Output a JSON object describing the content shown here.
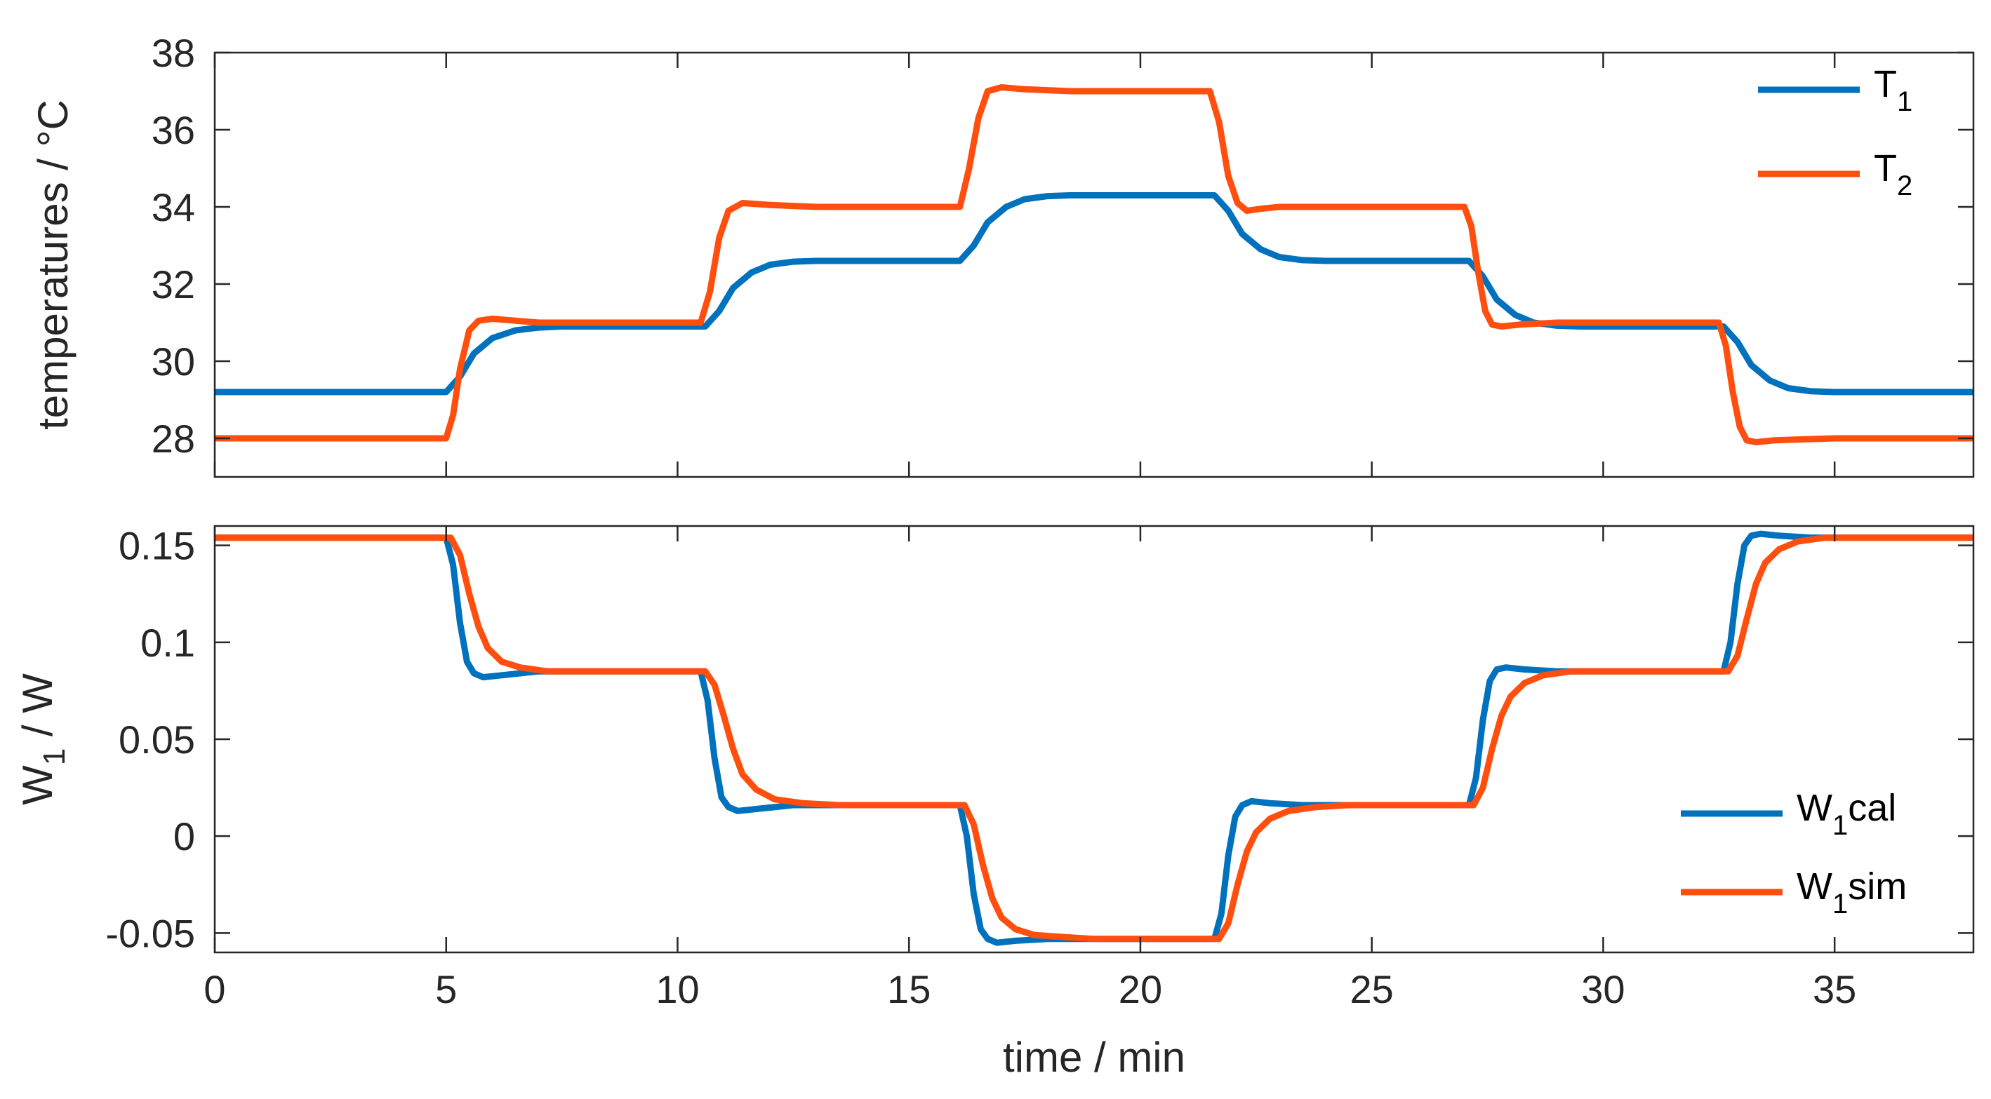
{
  "colors": {
    "T1": "#0072BD",
    "T2": "#FF4E0E",
    "axis": "#262626",
    "background": "#FFFFFF"
  },
  "chart_data": [
    {
      "type": "line",
      "title": "",
      "xlabel": "",
      "ylabel": "temperatures / °C",
      "xlim": [
        0,
        38
      ],
      "ylim": [
        27,
        38
      ],
      "xticks": [
        0,
        5,
        10,
        15,
        20,
        25,
        30,
        35
      ],
      "xtick_labels_shown": false,
      "yticks": [
        28,
        30,
        32,
        34,
        36,
        38
      ],
      "ytick_labels": [
        "28",
        "30",
        "32",
        "34",
        "36",
        "38"
      ],
      "grid": false,
      "legend_position": "top-right",
      "series": [
        {
          "name": "T1",
          "name_main": "T",
          "name_sub": "1",
          "name_rest": "",
          "color": "#0072BD",
          "x": [
            0,
            5.0,
            5.3,
            5.6,
            6.0,
            6.5,
            7.0,
            7.5,
            8.0,
            10.6,
            10.9,
            11.2,
            11.6,
            12.0,
            12.5,
            13.0,
            16.1,
            16.4,
            16.7,
            17.1,
            17.5,
            18.0,
            18.5,
            21.6,
            21.9,
            22.2,
            22.6,
            23.0,
            23.5,
            24.0,
            27.1,
            27.4,
            27.7,
            28.1,
            28.5,
            29.0,
            29.5,
            32.6,
            32.9,
            33.2,
            33.6,
            34.0,
            34.5,
            35.0,
            38
          ],
          "y": [
            29.2,
            29.2,
            29.6,
            30.2,
            30.6,
            30.8,
            30.87,
            30.9,
            30.9,
            30.9,
            31.3,
            31.9,
            32.3,
            32.5,
            32.58,
            32.6,
            32.6,
            33.0,
            33.6,
            34.0,
            34.2,
            34.28,
            34.3,
            34.3,
            33.9,
            33.3,
            32.9,
            32.7,
            32.62,
            32.6,
            32.6,
            32.2,
            31.6,
            31.2,
            31.0,
            30.92,
            30.9,
            30.9,
            30.5,
            29.9,
            29.5,
            29.3,
            29.22,
            29.2,
            29.2
          ]
        },
        {
          "name": "T2",
          "name_main": "T",
          "name_sub": "2",
          "name_rest": "",
          "color": "#FF4E0E",
          "x": [
            0,
            5.0,
            5.15,
            5.3,
            5.5,
            5.7,
            6.0,
            6.5,
            7.0,
            10.5,
            10.7,
            10.9,
            11.1,
            11.4,
            12.0,
            13.0,
            16.1,
            16.3,
            16.5,
            16.7,
            17.0,
            17.5,
            18.5,
            21.5,
            21.7,
            21.9,
            22.1,
            22.3,
            22.6,
            23.0,
            27.0,
            27.15,
            27.3,
            27.45,
            27.6,
            27.8,
            28.2,
            29.0,
            32.5,
            32.65,
            32.8,
            32.95,
            33.1,
            33.3,
            33.7,
            35.0,
            38
          ],
          "y": [
            28,
            28,
            28.6,
            29.8,
            30.8,
            31.05,
            31.1,
            31.05,
            31.0,
            31.0,
            31.8,
            33.2,
            33.9,
            34.1,
            34.05,
            34.0,
            34.0,
            35.0,
            36.3,
            37.0,
            37.1,
            37.05,
            37.0,
            37.0,
            36.2,
            34.8,
            34.1,
            33.9,
            33.95,
            34.0,
            34.0,
            33.5,
            32.3,
            31.3,
            30.95,
            30.9,
            30.95,
            31.0,
            31.0,
            30.4,
            29.2,
            28.3,
            27.95,
            27.9,
            27.95,
            28.0,
            28.0
          ]
        }
      ]
    },
    {
      "type": "line",
      "title": "",
      "xlabel": "time / min",
      "ylabel": "W1 / W",
      "ylabel_main": "W",
      "ylabel_sub": "1",
      "ylabel_rest": " / W",
      "xlim": [
        0,
        38
      ],
      "ylim": [
        -0.06,
        0.16
      ],
      "xticks": [
        0,
        5,
        10,
        15,
        20,
        25,
        30,
        35
      ],
      "xtick_labels": [
        "0",
        "5",
        "10",
        "15",
        "20",
        "25",
        "30",
        "35"
      ],
      "yticks": [
        -0.05,
        0,
        0.05,
        0.1,
        0.15
      ],
      "ytick_labels": [
        "-0.05",
        "0",
        "0.05",
        "0.1",
        "0.15"
      ],
      "grid": false,
      "legend_position": "bottom-right",
      "series": [
        {
          "name": "W1cal",
          "name_main": "W",
          "name_sub": "1",
          "name_rest": "cal",
          "color": "#0072BD",
          "x": [
            0,
            5.0,
            5.15,
            5.3,
            5.45,
            5.6,
            5.8,
            6.2,
            7.0,
            10.5,
            10.65,
            10.8,
            10.95,
            11.1,
            11.3,
            11.7,
            12.5,
            16.1,
            16.25,
            16.4,
            16.55,
            16.7,
            16.9,
            17.3,
            18.0,
            21.6,
            21.75,
            21.9,
            22.05,
            22.2,
            22.4,
            22.8,
            23.5,
            27.1,
            27.25,
            27.4,
            27.55,
            27.7,
            27.9,
            28.3,
            29.0,
            32.6,
            32.75,
            32.9,
            33.05,
            33.2,
            33.4,
            33.8,
            34.5,
            38
          ],
          "y": [
            0.154,
            0.154,
            0.14,
            0.11,
            0.09,
            0.084,
            0.082,
            0.083,
            0.085,
            0.085,
            0.07,
            0.04,
            0.02,
            0.015,
            0.013,
            0.014,
            0.016,
            0.016,
            0.0,
            -0.03,
            -0.048,
            -0.053,
            -0.055,
            -0.054,
            -0.053,
            -0.053,
            -0.04,
            -0.01,
            0.01,
            0.016,
            0.018,
            0.017,
            0.016,
            0.016,
            0.03,
            0.06,
            0.08,
            0.086,
            0.087,
            0.086,
            0.085,
            0.085,
            0.1,
            0.13,
            0.15,
            0.155,
            0.156,
            0.155,
            0.154,
            0.154
          ]
        },
        {
          "name": "W1sim",
          "name_main": "W",
          "name_sub": "1",
          "name_rest": "sim",
          "color": "#FF4E0E",
          "x": [
            0,
            5.1,
            5.3,
            5.5,
            5.7,
            5.9,
            6.2,
            6.6,
            7.2,
            8.0,
            10.6,
            10.8,
            11.0,
            11.2,
            11.4,
            11.7,
            12.1,
            12.7,
            13.5,
            16.2,
            16.4,
            16.6,
            16.8,
            17.0,
            17.3,
            17.7,
            18.3,
            19.0,
            21.7,
            21.9,
            22.1,
            22.3,
            22.5,
            22.8,
            23.2,
            23.8,
            24.5,
            27.2,
            27.4,
            27.6,
            27.8,
            28.0,
            28.3,
            28.7,
            29.3,
            30.0,
            32.7,
            32.9,
            33.1,
            33.3,
            33.5,
            33.8,
            34.2,
            34.8,
            35.5,
            38
          ],
          "y": [
            0.154,
            0.154,
            0.145,
            0.125,
            0.108,
            0.097,
            0.09,
            0.087,
            0.085,
            0.085,
            0.085,
            0.078,
            0.062,
            0.045,
            0.032,
            0.024,
            0.019,
            0.017,
            0.016,
            0.016,
            0.006,
            -0.015,
            -0.032,
            -0.042,
            -0.048,
            -0.051,
            -0.052,
            -0.053,
            -0.053,
            -0.045,
            -0.025,
            -0.008,
            0.002,
            0.009,
            0.013,
            0.015,
            0.016,
            0.016,
            0.025,
            0.045,
            0.062,
            0.072,
            0.079,
            0.083,
            0.085,
            0.085,
            0.085,
            0.093,
            0.112,
            0.13,
            0.141,
            0.148,
            0.152,
            0.154,
            0.154,
            0.154
          ]
        }
      ]
    }
  ]
}
